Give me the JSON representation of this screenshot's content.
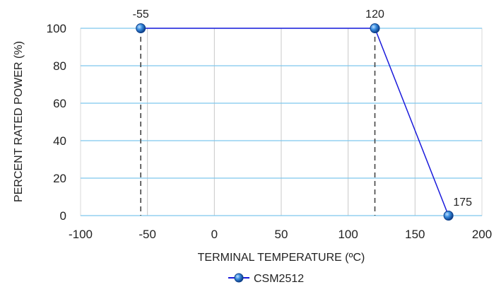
{
  "chart_data": {
    "type": "line",
    "xlabel": "TERMINAL TEMPERATURE (ºC)",
    "ylabel": "PERCENT RATED POWER (%)",
    "xlim": [
      -100,
      200
    ],
    "ylim": [
      0,
      100
    ],
    "x_ticks": [
      -100,
      -50,
      0,
      50,
      100,
      150,
      200
    ],
    "y_ticks": [
      0,
      20,
      40,
      60,
      80,
      100
    ],
    "grid": true,
    "legend_position": "bottom",
    "series": [
      {
        "name": "CSM2512",
        "color": "#1a1adb",
        "marker_color": "#2f7fd3",
        "points": [
          {
            "x": -55,
            "y": 100,
            "label": "-55"
          },
          {
            "x": 120,
            "y": 100,
            "label": "120"
          },
          {
            "x": 175,
            "y": 0,
            "label": "175"
          }
        ]
      }
    ],
    "reference_lines": [
      {
        "x": -55,
        "style": "dashed"
      },
      {
        "x": 120,
        "style": "dashed"
      }
    ]
  }
}
